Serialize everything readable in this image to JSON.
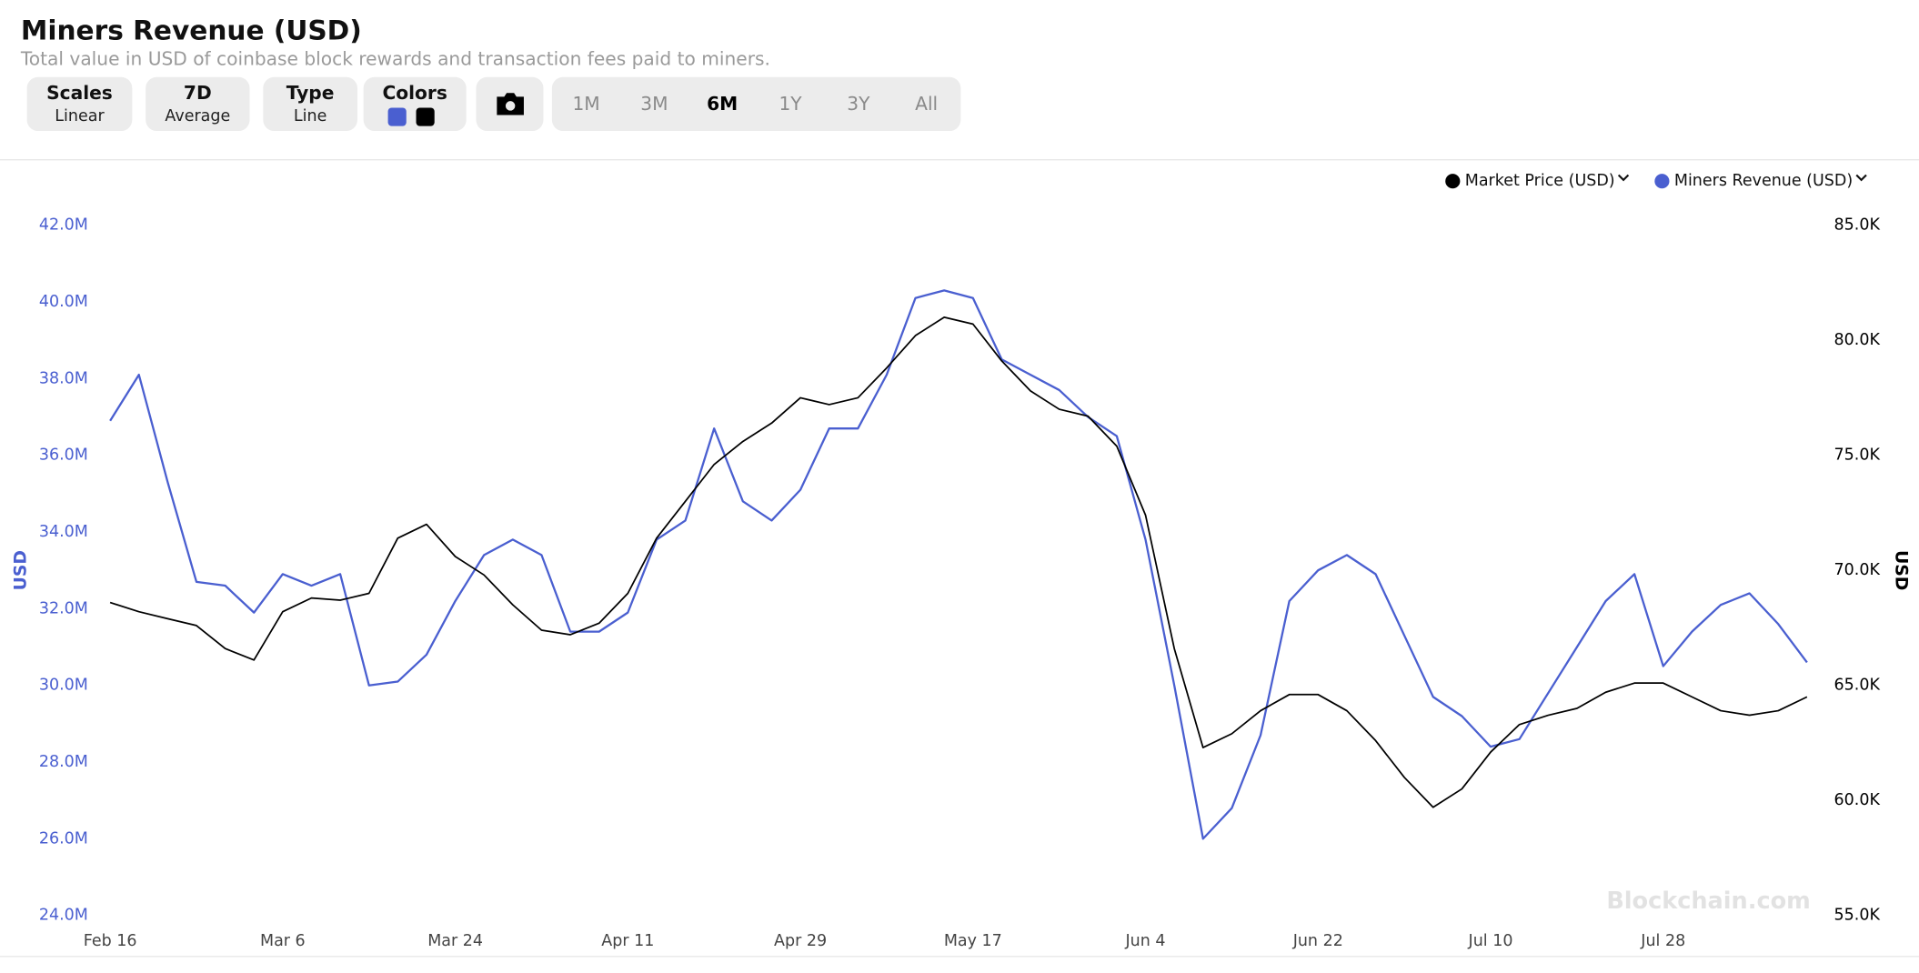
{
  "header": {
    "title": "Miners Revenue (USD)",
    "subtitle": "Total value in USD of coinbase block rewards and transaction fees paid to miners."
  },
  "controls": [
    {
      "title": "Scales",
      "value": "Linear"
    },
    {
      "title": "7D",
      "value": "Average"
    },
    {
      "title": "Type",
      "value": "Line"
    },
    {
      "title": "Colors"
    }
  ],
  "ranges": [
    {
      "label": "1M",
      "active": false
    },
    {
      "label": "3M",
      "active": false
    },
    {
      "label": "6M",
      "active": true
    },
    {
      "label": "1Y",
      "active": false
    },
    {
      "label": "3Y",
      "active": false
    },
    {
      "label": "All",
      "active": false
    }
  ],
  "watermark": "Blockchain.com",
  "chart_data": {
    "type": "line",
    "y_label": "USD",
    "y2_label": "USD",
    "grid": false,
    "legend": "top-right",
    "categories": [
      "Feb 16",
      null,
      null,
      null,
      null,
      null,
      "Mar 6",
      null,
      null,
      null,
      null,
      null,
      "Mar 24",
      null,
      null,
      null,
      null,
      null,
      "Apr 11",
      null,
      null,
      null,
      null,
      null,
      "Apr 29",
      null,
      null,
      null,
      null,
      null,
      "May 17",
      null,
      null,
      null,
      null,
      null,
      "Jun 4",
      null,
      null,
      null,
      null,
      null,
      "Jun 22",
      null,
      null,
      null,
      null,
      null,
      "Jul 10",
      null,
      null,
      null,
      null,
      null,
      "Jul 28",
      null,
      null,
      null,
      null,
      null
    ],
    "ylim": [
      24000000,
      42000000
    ],
    "yticks": [
      {
        "value": 42000000,
        "label": "42.0M"
      },
      {
        "value": 40000000,
        "label": "40.0M"
      },
      {
        "value": 38000000,
        "label": "38.0M"
      },
      {
        "value": 36000000,
        "label": "36.0M"
      },
      {
        "value": 34000000,
        "label": "34.0M"
      },
      {
        "value": 32000000,
        "label": "32.0M"
      },
      {
        "value": 30000000,
        "label": "30.0M"
      },
      {
        "value": 28000000,
        "label": "28.0M"
      },
      {
        "value": 26000000,
        "label": "26.0M"
      },
      {
        "value": 24000000,
        "label": "24.0M"
      }
    ],
    "y2lim": [
      55000,
      85000
    ],
    "y2ticks": [
      {
        "value": 85000,
        "label": "85.0K"
      },
      {
        "value": 80000,
        "label": "80.0K"
      },
      {
        "value": 75000,
        "label": "75.0K"
      },
      {
        "value": 70000,
        "label": "70.0K"
      },
      {
        "value": 65000,
        "label": "65.0K"
      },
      {
        "value": 60000,
        "label": "60.0K"
      },
      {
        "value": 55000,
        "label": "55.0K"
      }
    ],
    "series": [
      {
        "name": "Market Price (USD)",
        "color": "#000000",
        "axis": "y2",
        "values": [
          68600,
          68200,
          67900,
          67600,
          66600,
          66100,
          68200,
          68800,
          68700,
          69000,
          71400,
          72000,
          70600,
          69800,
          68500,
          67400,
          67200,
          67700,
          69000,
          71400,
          73000,
          74600,
          75600,
          76400,
          77500,
          77200,
          77500,
          78800,
          80200,
          81000,
          80700,
          79100,
          77800,
          77000,
          76700,
          75400,
          72400,
          66600,
          62300,
          62900,
          63900,
          64600,
          64600,
          63900,
          62600,
          61000,
          59700,
          60500,
          62100,
          63300,
          63700,
          64000,
          64700,
          65100,
          65100,
          64500,
          63900,
          63700,
          63900,
          64500
        ]
      },
      {
        "name": "Miners Revenue (USD)",
        "color": "#4a5fd0",
        "axis": "y",
        "values": [
          36900000,
          38100000,
          35300000,
          32700000,
          32600000,
          31900000,
          32900000,
          32600000,
          32900000,
          30000000,
          30100000,
          30800000,
          32200000,
          33400000,
          33800000,
          33400000,
          31400000,
          31400000,
          31900000,
          33800000,
          34300000,
          36700000,
          34800000,
          34300000,
          35100000,
          36700000,
          36700000,
          38100000,
          40100000,
          40300000,
          40100000,
          38500000,
          38100000,
          37700000,
          37000000,
          36500000,
          33800000,
          30000000,
          26000000,
          26800000,
          28700000,
          32200000,
          33000000,
          33400000,
          32900000,
          31300000,
          29700000,
          29200000,
          28400000,
          28600000,
          29800000,
          31000000,
          32200000,
          32900000,
          30500000,
          31400000,
          32100000,
          32400000,
          31600000,
          30600000
        ]
      }
    ]
  }
}
